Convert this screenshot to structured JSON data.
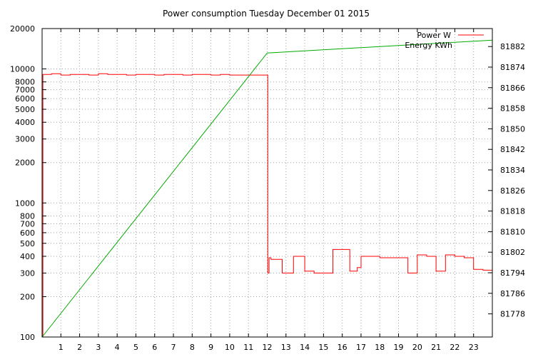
{
  "chart_data": {
    "type": "line",
    "title": "Power consumption Tuesday December 01 2015",
    "xlabel": "",
    "ylabel": "",
    "y2label": "",
    "x_ticks": [
      "1",
      "2",
      "3",
      "4",
      "5",
      "6",
      "7",
      "8",
      "9",
      "10",
      "11",
      "12",
      "13",
      "14",
      "15",
      "16",
      "17",
      "18",
      "19",
      "20",
      "21",
      "22",
      "23"
    ],
    "xlim": [
      0,
      24
    ],
    "y_scale": "log",
    "ylim": [
      100,
      20000
    ],
    "y_ticks": [
      {
        "value": 100,
        "label": "100"
      },
      {
        "value": 200,
        "label": "200"
      },
      {
        "value": 300,
        "label": "300"
      },
      {
        "value": 400,
        "label": "400"
      },
      {
        "value": 500,
        "label": "500"
      },
      {
        "value": 600,
        "label": "600"
      },
      {
        "value": 700,
        "label": "700"
      },
      {
        "value": 800,
        "label": "800"
      },
      {
        "value": 1000,
        "label": "1000"
      },
      {
        "value": 2000,
        "label": "2000"
      },
      {
        "value": 3000,
        "label": "3000"
      },
      {
        "value": 4000,
        "label": "4000"
      },
      {
        "value": 5000,
        "label": "5000"
      },
      {
        "value": 6000,
        "label": "6000"
      },
      {
        "value": 7000,
        "label": "7000"
      },
      {
        "value": 8000,
        "label": "8000"
      },
      {
        "value": 10000,
        "label": "10000"
      },
      {
        "value": 20000,
        "label": "20000"
      }
    ],
    "y2lim": [
      81769,
      81889
    ],
    "y2_ticks": [
      "81778",
      "81786",
      "81794",
      "81802",
      "81810",
      "81818",
      "81826",
      "81834",
      "81842",
      "81850",
      "81858",
      "81866",
      "81874",
      "81882"
    ],
    "grid": true,
    "legend_position": "top-right",
    "series": [
      {
        "name": "Power W",
        "color": "#ff0000",
        "axis": "y",
        "x": [
          0,
          0.04,
          0.08,
          0.5,
          1.0,
          1.5,
          2.0,
          2.5,
          3.0,
          3.5,
          4.0,
          4.5,
          5.0,
          5.5,
          6.0,
          6.5,
          7.0,
          7.5,
          8.0,
          8.5,
          9.0,
          9.5,
          10.0,
          10.5,
          11.0,
          11.5,
          12.0,
          12.03,
          12.1,
          12.2,
          12.5,
          12.8,
          13.0,
          13.4,
          13.8,
          14.0,
          14.5,
          15.0,
          15.5,
          16.0,
          16.4,
          16.8,
          17.0,
          17.5,
          18.0,
          18.5,
          19.0,
          19.5,
          20.0,
          20.5,
          21.0,
          21.5,
          22.0,
          22.5,
          23.0,
          23.5,
          24.0
        ],
        "y": [
          100,
          9100,
          9100,
          9200,
          9000,
          9100,
          9100,
          9000,
          9200,
          9100,
          9100,
          9000,
          9100,
          9100,
          9000,
          9100,
          9100,
          9000,
          9100,
          9100,
          9000,
          9100,
          9000,
          9000,
          9000,
          9000,
          9000,
          300,
          390,
          380,
          380,
          300,
          300,
          400,
          400,
          310,
          300,
          300,
          450,
          450,
          310,
          330,
          400,
          400,
          390,
          390,
          390,
          300,
          410,
          400,
          310,
          410,
          400,
          390,
          320,
          315,
          310
        ]
      },
      {
        "name": "Energy KWh",
        "color": "#00aa00",
        "axis": "y2",
        "x": [
          0,
          12,
          24
        ],
        "y": [
          81769,
          81879.5,
          81884.5
        ]
      }
    ]
  }
}
